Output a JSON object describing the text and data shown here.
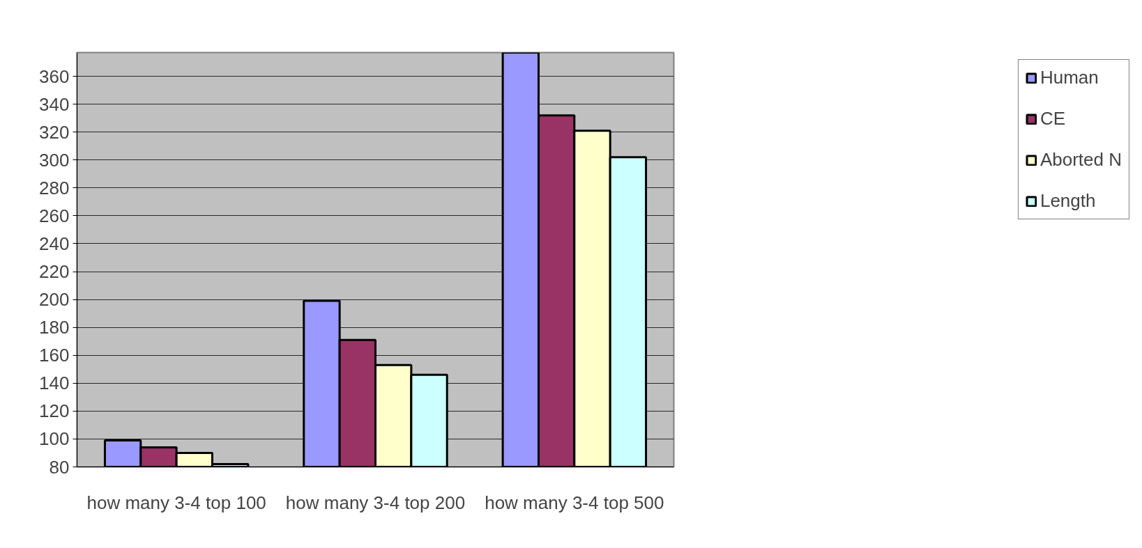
{
  "chart_data": {
    "type": "bar",
    "categories": [
      "how many 3-4 top 100",
      "how many 3-4 top 200",
      "how many 3-4 top 500"
    ],
    "series": [
      {
        "name": "Human",
        "color": "#9999ff",
        "values": [
          99,
          199,
          377
        ]
      },
      {
        "name": "CE",
        "color": "#993366",
        "values": [
          94,
          171,
          332
        ]
      },
      {
        "name": "Aborted N",
        "color": "#ffffcc",
        "values": [
          90,
          153,
          321
        ]
      },
      {
        "name": "Length",
        "color": "#ccffff",
        "values": [
          82,
          146,
          302
        ]
      }
    ],
    "ylim": [
      80,
      377
    ],
    "yticks": [
      80,
      100,
      120,
      140,
      160,
      180,
      200,
      220,
      240,
      260,
      280,
      300,
      320,
      340,
      360
    ],
    "grid": "y",
    "legend": "right"
  }
}
